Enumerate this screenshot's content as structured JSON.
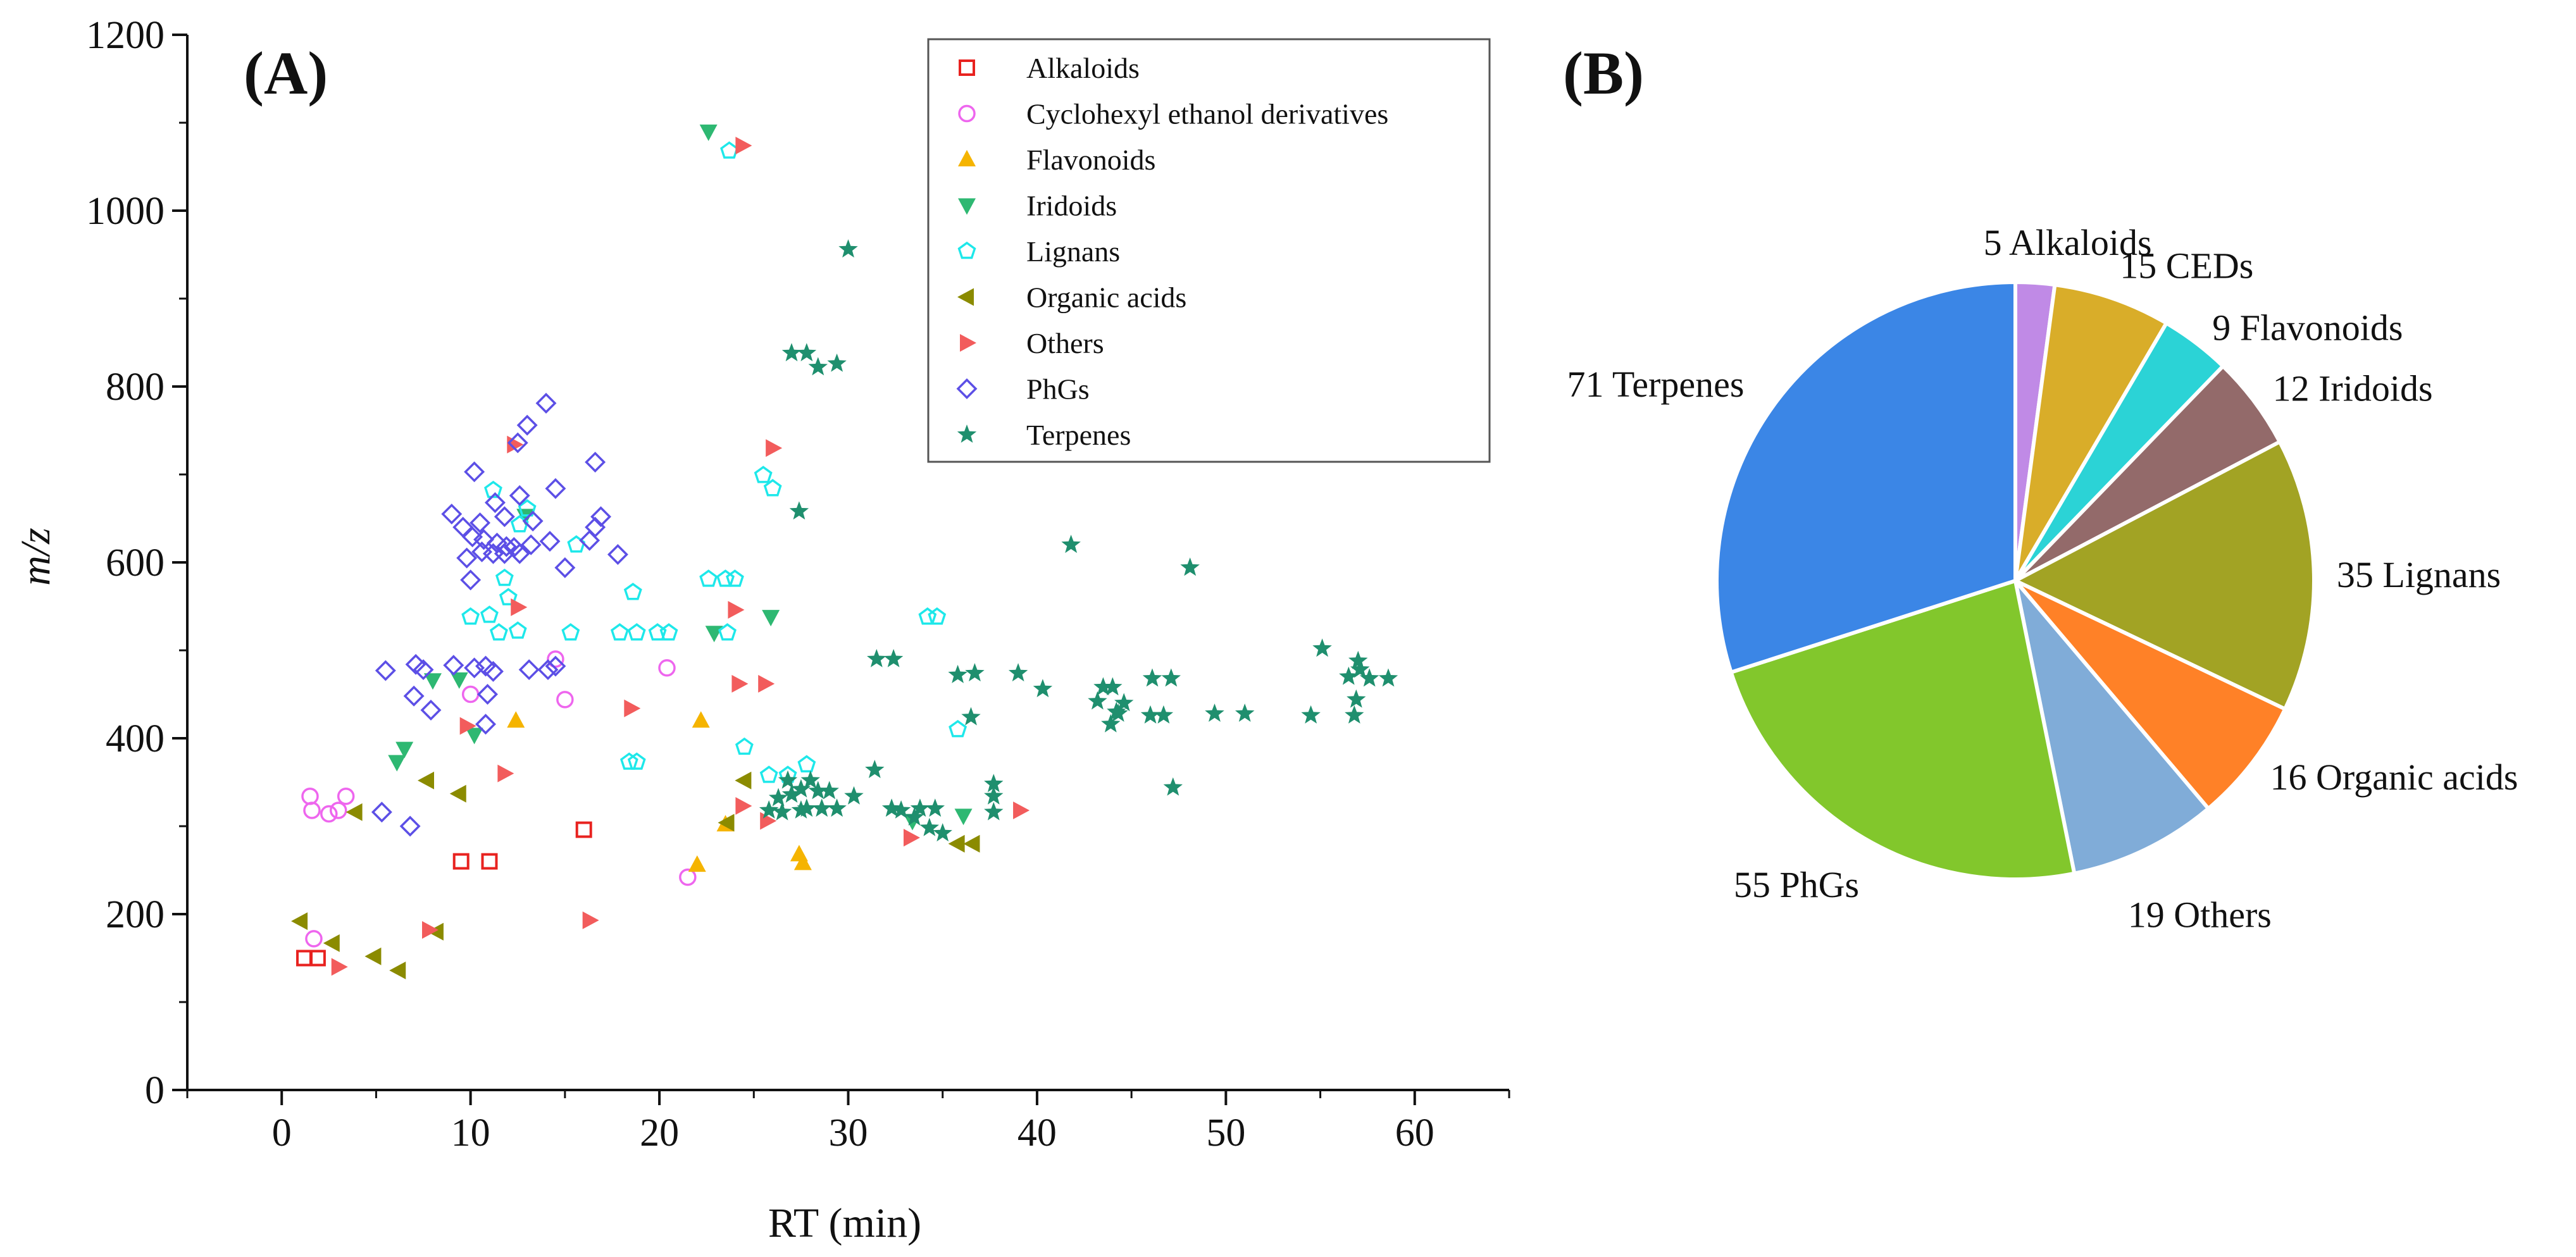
{
  "chart_data": [
    {
      "type": "scatter",
      "panel_label": "(A)",
      "xlabel": "RT (min)",
      "ylabel": "m/z",
      "xlim": [
        -5,
        65
      ],
      "ylim": [
        0,
        1200
      ],
      "x_ticks": [
        "0",
        "10",
        "20",
        "30",
        "40",
        "50",
        "60"
      ],
      "y_ticks": [
        "0",
        "200",
        "400",
        "600",
        "800",
        "1000",
        "1200"
      ],
      "legend_position": "top-right",
      "series": [
        {
          "name": "Alkaloids",
          "marker": "square-open",
          "color": "#e8221f",
          "points": [
            [
              1.2,
              150
            ],
            [
              1.9,
              150
            ],
            [
              9.5,
              260
            ],
            [
              11.0,
              260
            ],
            [
              16.0,
              296
            ]
          ]
        },
        {
          "name": "Cyclohexyl ethanol derivatives",
          "marker": "circle-open",
          "color": "#ee66ee",
          "points": [
            [
              1.5,
              334
            ],
            [
              1.6,
              318
            ],
            [
              2.5,
              314
            ],
            [
              3.0,
              318
            ],
            [
              3.4,
              334
            ],
            [
              1.7,
              172
            ],
            [
              10.0,
              450
            ],
            [
              14.5,
              490
            ],
            [
              15.0,
              444
            ],
            [
              20.4,
              480
            ],
            [
              21.5,
              242
            ]
          ]
        },
        {
          "name": "Flavonoids",
          "marker": "triangle-up",
          "color": "#f5b400",
          "points": [
            [
              12.4,
              420
            ],
            [
              22.2,
              420
            ],
            [
              23.5,
              302
            ],
            [
              22.0,
              256
            ],
            [
              27.4,
              268
            ],
            [
              27.6,
              258
            ]
          ]
        },
        {
          "name": "Iridoids",
          "marker": "triangle-down",
          "color": "#2eb872",
          "points": [
            [
              22.6,
              1090
            ],
            [
              6.1,
              373
            ],
            [
              6.5,
              388
            ],
            [
              8.0,
              466
            ],
            [
              9.4,
              467
            ],
            [
              10.2,
              404
            ],
            [
              12.9,
              653
            ],
            [
              22.9,
              520
            ],
            [
              25.9,
              538
            ],
            [
              33.4,
              306
            ],
            [
              36.1,
              312
            ]
          ]
        },
        {
          "name": "Lignans",
          "marker": "pentagon-open",
          "color": "#1ee8ea",
          "points": [
            [
              23.7,
              1068
            ],
            [
              11.2,
              682
            ],
            [
              13.0,
              661
            ],
            [
              12.6,
              643
            ],
            [
              10.0,
              538
            ],
            [
              11.5,
              520
            ],
            [
              11.8,
              582
            ],
            [
              12.0,
              560
            ],
            [
              11.0,
              540
            ],
            [
              12.5,
              522
            ],
            [
              15.3,
              520
            ],
            [
              15.6,
              620
            ],
            [
              17.9,
              520
            ],
            [
              18.8,
              520
            ],
            [
              18.6,
              566
            ],
            [
              19.9,
              520
            ],
            [
              20.5,
              520
            ],
            [
              18.4,
              373
            ],
            [
              18.8,
              373
            ],
            [
              22.6,
              581
            ],
            [
              23.5,
              581
            ],
            [
              24.0,
              581
            ],
            [
              23.6,
              520
            ],
            [
              25.5,
              699
            ],
            [
              26.0,
              684
            ],
            [
              24.5,
              390
            ],
            [
              25.8,
              358
            ],
            [
              26.8,
              358
            ],
            [
              27.8,
              370
            ],
            [
              34.2,
              538
            ],
            [
              34.7,
              538
            ],
            [
              35.8,
              410
            ]
          ]
        },
        {
          "name": "Organic acids",
          "marker": "triangle-left",
          "color": "#8b8b00",
          "points": [
            [
              1.0,
              192
            ],
            [
              2.7,
              167
            ],
            [
              4.9,
              152
            ],
            [
              6.2,
              136
            ],
            [
              3.9,
              316
            ],
            [
              7.7,
              352
            ],
            [
              9.4,
              337
            ],
            [
              8.2,
              180
            ],
            [
              23.6,
              304
            ],
            [
              24.5,
              352
            ],
            [
              35.8,
              280
            ],
            [
              36.6,
              280
            ]
          ]
        },
        {
          "name": "Others",
          "marker": "triangle-right",
          "color": "#f25c5c",
          "points": [
            [
              24.4,
              1074
            ],
            [
              12.3,
              734
            ],
            [
              26.0,
              730
            ],
            [
              12.5,
              549
            ],
            [
              24.0,
              546
            ],
            [
              25.6,
              462
            ],
            [
              24.2,
              462
            ],
            [
              18.5,
              434
            ],
            [
              9.8,
              414
            ],
            [
              11.8,
              360
            ],
            [
              24.4,
              323
            ],
            [
              25.7,
              306
            ],
            [
              33.3,
              287
            ],
            [
              39.1,
              318
            ],
            [
              16.3,
              193
            ],
            [
              7.8,
              182
            ],
            [
              3.0,
              140
            ]
          ]
        },
        {
          "name": "PhGs",
          "marker": "diamond-open",
          "color": "#5c4fe6",
          "points": [
            [
              14.0,
              781
            ],
            [
              13.0,
              756
            ],
            [
              12.5,
              736
            ],
            [
              16.6,
              714
            ],
            [
              10.2,
              703
            ],
            [
              11.3,
              668
            ],
            [
              12.6,
              676
            ],
            [
              14.5,
              684
            ],
            [
              9.0,
              655
            ],
            [
              11.8,
              652
            ],
            [
              13.3,
              647
            ],
            [
              16.9,
              652
            ],
            [
              16.6,
              640
            ],
            [
              9.6,
              640
            ],
            [
              10.1,
              629
            ],
            [
              10.7,
              626
            ],
            [
              11.4,
              622
            ],
            [
              11.9,
              618
            ],
            [
              12.3,
              617
            ],
            [
              13.2,
              620
            ],
            [
              14.2,
              624
            ],
            [
              16.3,
              625
            ],
            [
              9.8,
              605
            ],
            [
              10.6,
              612
            ],
            [
              11.2,
              610
            ],
            [
              11.8,
              610
            ],
            [
              12.6,
              610
            ],
            [
              10.5,
              645
            ],
            [
              10.0,
              580
            ],
            [
              15.0,
              594
            ],
            [
              17.8,
              609
            ],
            [
              7.1,
              484
            ],
            [
              7.5,
              478
            ],
            [
              9.1,
              483
            ],
            [
              10.2,
              480
            ],
            [
              10.8,
              482
            ],
            [
              11.2,
              476
            ],
            [
              13.1,
              478
            ],
            [
              14.1,
              478
            ],
            [
              5.5,
              477
            ],
            [
              7.0,
              448
            ],
            [
              7.9,
              432
            ],
            [
              10.8,
              416
            ],
            [
              5.3,
              316
            ],
            [
              6.8,
              300
            ],
            [
              10.9,
              450
            ],
            [
              14.5,
              482
            ]
          ]
        },
        {
          "name": "Terpenes",
          "marker": "star",
          "color": "#1f8f6e",
          "points": [
            [
              30.0,
              956
            ],
            [
              27.0,
              838
            ],
            [
              27.8,
              838
            ],
            [
              28.4,
              822
            ],
            [
              29.4,
              826
            ],
            [
              27.4,
              658
            ],
            [
              41.8,
              620
            ],
            [
              48.1,
              594
            ],
            [
              55.1,
              502
            ],
            [
              57.0,
              488
            ],
            [
              57.1,
              478
            ],
            [
              56.5,
              470
            ],
            [
              57.6,
              468
            ],
            [
              58.6,
              468
            ],
            [
              56.9,
              444
            ],
            [
              56.8,
              426
            ],
            [
              54.5,
              426
            ],
            [
              51.0,
              428
            ],
            [
              49.4,
              428
            ],
            [
              47.1,
              468
            ],
            [
              46.1,
              468
            ],
            [
              46.7,
              426
            ],
            [
              46.0,
              426
            ],
            [
              44.3,
              428
            ],
            [
              44.0,
              458
            ],
            [
              43.5,
              458
            ],
            [
              44.2,
              430
            ],
            [
              43.2,
              442
            ],
            [
              43.9,
              416
            ],
            [
              40.3,
              456
            ],
            [
              39.0,
              474
            ],
            [
              36.7,
              474
            ],
            [
              35.8,
              472
            ],
            [
              36.5,
              424
            ],
            [
              37.7,
              348
            ],
            [
              37.7,
              334
            ],
            [
              37.7,
              316
            ],
            [
              31.5,
              490
            ],
            [
              32.4,
              490
            ],
            [
              31.4,
              364
            ],
            [
              32.3,
              320
            ],
            [
              33.8,
              320
            ],
            [
              34.6,
              320
            ],
            [
              33.5,
              310
            ],
            [
              34.3,
              298
            ],
            [
              35.0,
              292
            ],
            [
              26.8,
              352
            ],
            [
              27.0,
              336
            ],
            [
              27.8,
              320
            ],
            [
              28.4,
              340
            ],
            [
              28.6,
              320
            ],
            [
              29.4,
              320
            ],
            [
              27.5,
              342
            ],
            [
              26.3,
              332
            ],
            [
              25.8,
              318
            ],
            [
              26.5,
              316
            ],
            [
              28.0,
              352
            ],
            [
              29.0,
              340
            ],
            [
              30.3,
              334
            ],
            [
              32.8,
              318
            ],
            [
              47.2,
              344
            ],
            [
              44.6,
              440
            ],
            [
              27.5,
              318
            ]
          ]
        }
      ]
    },
    {
      "type": "pie",
      "panel_label": "(B)",
      "slices": [
        {
          "name": "Alkaloids",
          "value": 5,
          "label": "5 Alkaloids",
          "color": "#c08ae6"
        },
        {
          "name": "CEDs",
          "value": 15,
          "label": "15 CEDs",
          "color": "#d9ad29"
        },
        {
          "name": "Flavonoids",
          "value": 9,
          "label": "9 Flavonoids",
          "color": "#2bd3d6"
        },
        {
          "name": "Iridoids",
          "value": 12,
          "label": "12 Iridoids",
          "color": "#936a6a"
        },
        {
          "name": "Lignans",
          "value": 35,
          "label": "35 Lignans",
          "color": "#a2a324"
        },
        {
          "name": "Organic acids",
          "value": 16,
          "label": "16 Organic acids",
          "color": "#ff8127"
        },
        {
          "name": "Others",
          "value": 19,
          "label": "19 Others",
          "color": "#80acd8"
        },
        {
          "name": "PhGs",
          "value": 55,
          "label": "55 PhGs",
          "color": "#82c72c"
        },
        {
          "name": "Terpenes",
          "value": 71,
          "label": "71 Terpenes",
          "color": "#3b86e6"
        }
      ]
    }
  ]
}
